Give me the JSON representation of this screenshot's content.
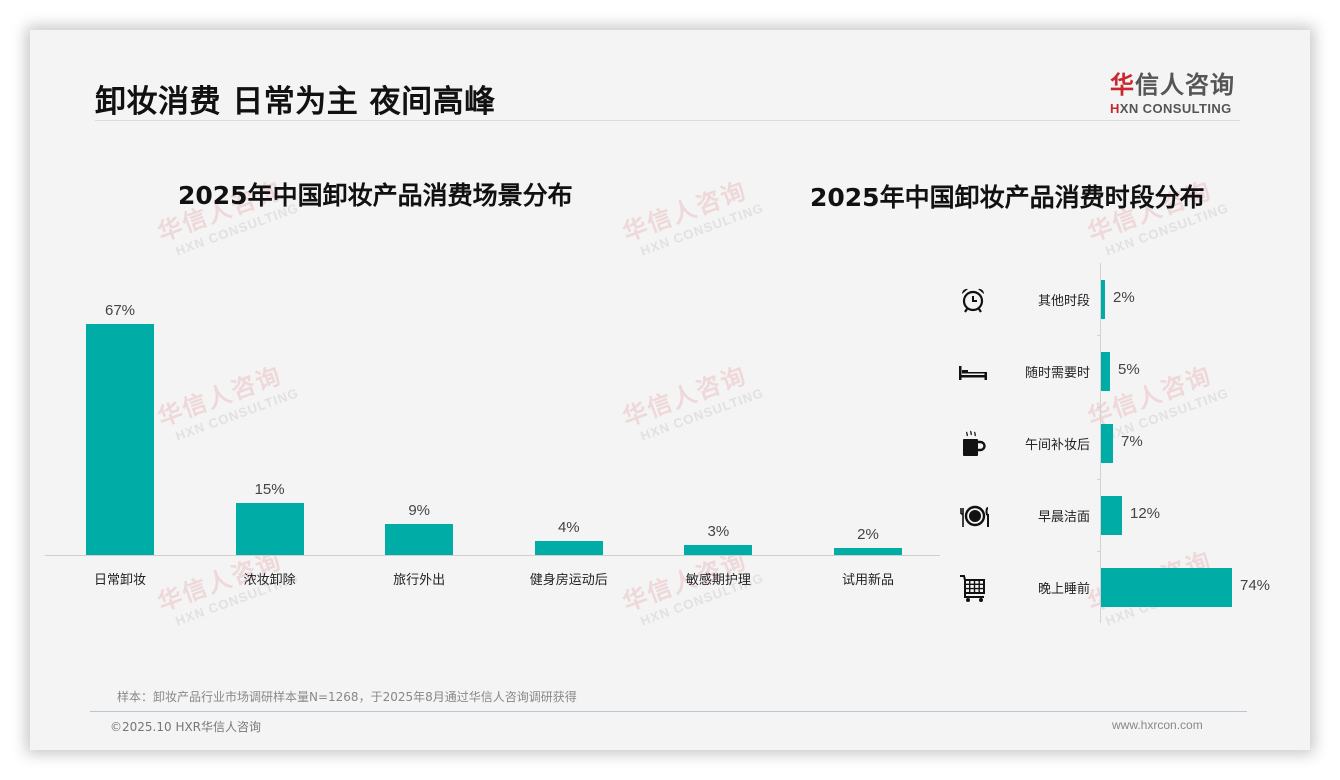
{
  "header": {
    "title": "卸妆消费 日常为主 夜间高峰",
    "logo": {
      "cn_accent": "华",
      "cn_rest": "信人咨询",
      "en_accent": "H",
      "en_rest": "XN CONSULTING"
    }
  },
  "watermark": {
    "cn": "华信人咨询",
    "en": "HXN CONSULTING"
  },
  "theme": {
    "bar_color": "#00ada6",
    "logo_accent": "#c8272d",
    "background": "#f4f4f4"
  },
  "chart_data": [
    {
      "type": "bar",
      "title": "2025年中国卸妆产品消费场景分布",
      "categories": [
        "日常卸妆",
        "浓妆卸除",
        "旅行外出",
        "健身房运动后",
        "敏感期护理",
        "试用新品"
      ],
      "values": [
        67,
        15,
        9,
        4,
        3,
        2
      ],
      "value_labels": [
        "67%",
        "15%",
        "9%",
        "4%",
        "3%",
        "2%"
      ],
      "xlabel": "",
      "ylabel": "",
      "unit": "%",
      "grid": false,
      "legend": null
    },
    {
      "type": "bar",
      "orientation": "horizontal",
      "title": "2025年中国卸妆产品消费时段分布",
      "categories": [
        "其他时段",
        "随时需要时",
        "午间补妆后",
        "早晨洁面",
        "晚上睡前"
      ],
      "values": [
        2,
        5,
        7,
        12,
        74
      ],
      "value_labels": [
        "2%",
        "5%",
        "7%",
        "12%",
        "74%"
      ],
      "icons": [
        "alarm-clock-icon",
        "bed-icon",
        "hot-coffee-mug-icon",
        "plate-fork-knife-icon",
        "shopping-cart-icon"
      ],
      "xlabel": "",
      "ylabel": "",
      "unit": "%",
      "grid": false,
      "legend": null
    }
  ],
  "footer": {
    "source_note": "样本：卸妆产品行业市场调研样本量N=1268，于2025年8月通过华信人咨询调研获得",
    "copyright": "©2025.10 HXR华信人咨询",
    "website": "www.hxrcon.com"
  }
}
